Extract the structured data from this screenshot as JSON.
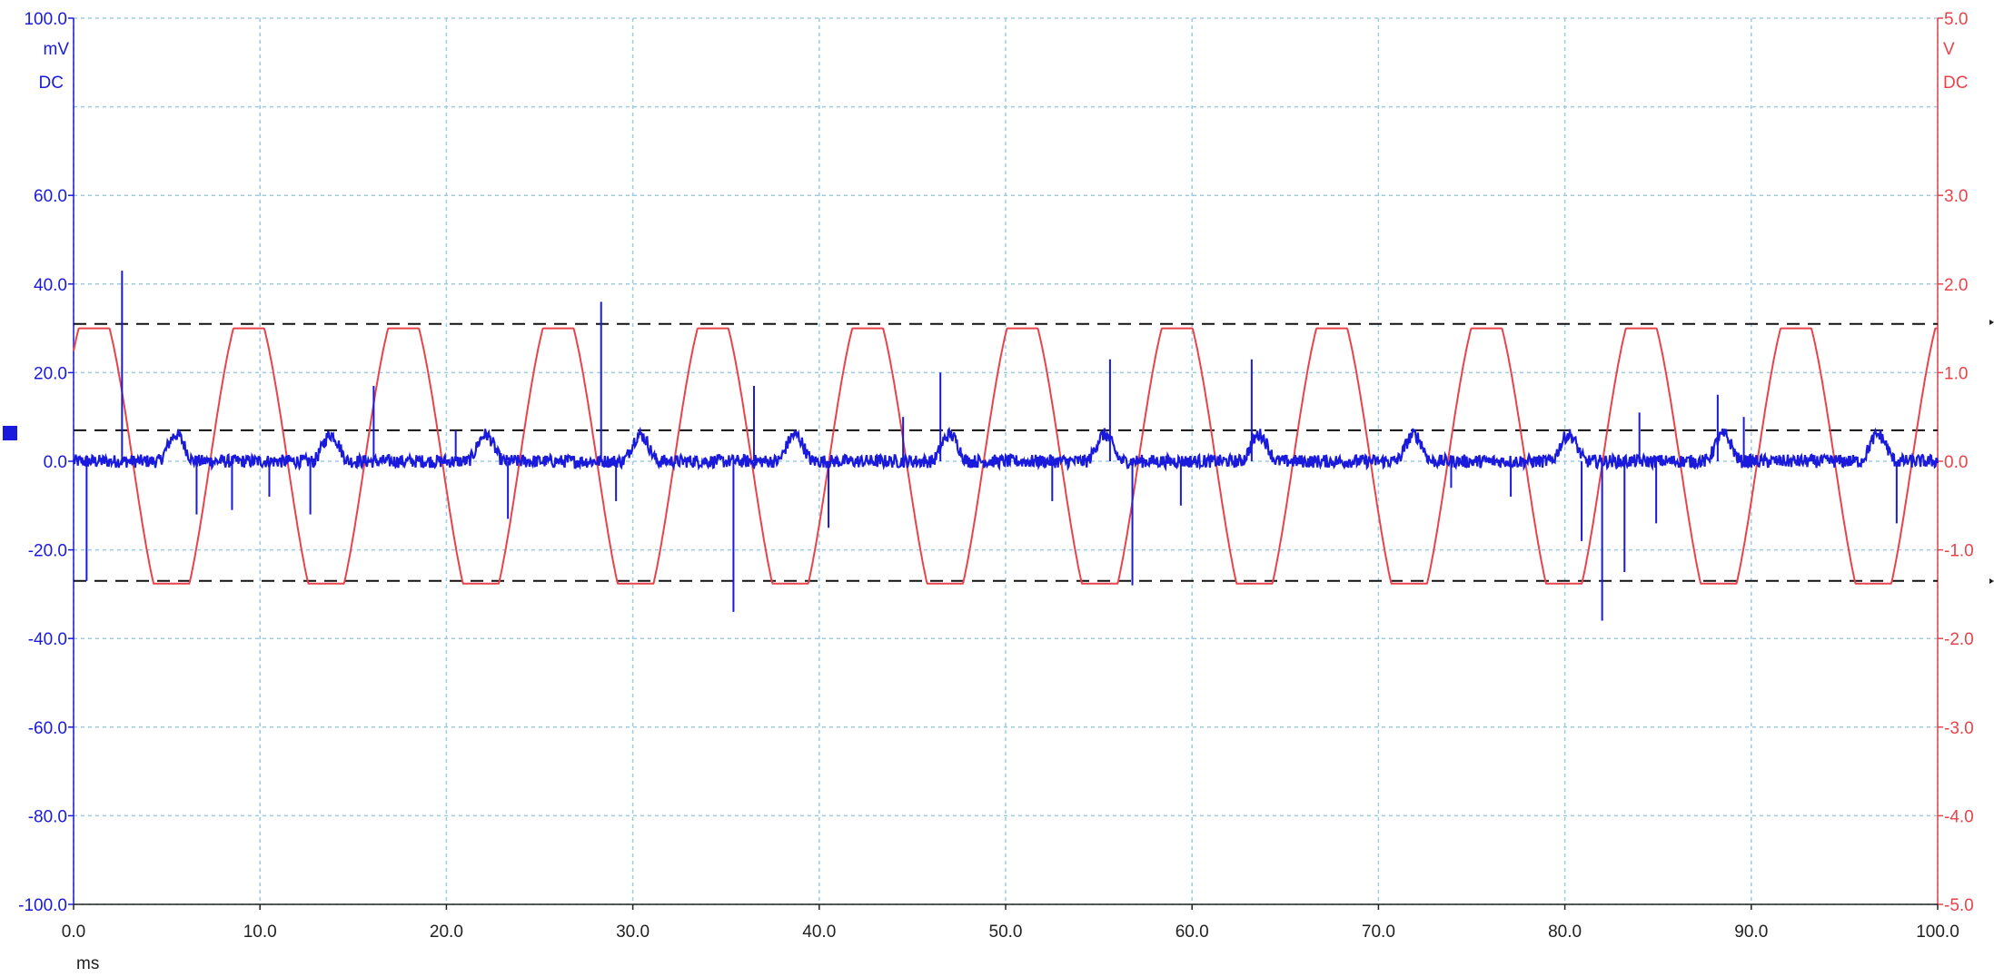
{
  "chart_data": {
    "type": "line",
    "title": "",
    "x_axis": {
      "range": [
        0,
        100
      ],
      "ticks": [
        "0.0",
        "10.0",
        "20.0",
        "30.0",
        "40.0",
        "50.0",
        "60.0",
        "70.0",
        "80.0",
        "90.0",
        "100.0"
      ],
      "unit_label": "ms"
    },
    "left_axis": {
      "range": [
        -100,
        100
      ],
      "ticks": [
        "100.0",
        "60.0",
        "40.0",
        "20.0",
        "0.0",
        "-20.0",
        "-40.0",
        "-60.0",
        "-80.0",
        "-100.0"
      ],
      "tick_values": [
        100,
        60,
        40,
        20,
        0,
        -20,
        -40,
        -60,
        -80,
        -100
      ],
      "unit": "mV",
      "coupling": "DC",
      "color": "#1a1adc"
    },
    "right_axis": {
      "range": [
        -5,
        5
      ],
      "ticks": [
        "5.0",
        "3.0",
        "2.0",
        "1.0",
        "0.0",
        "-1.0",
        "-2.0",
        "-3.0",
        "-4.0",
        "-5.0"
      ],
      "tick_values": [
        5,
        3,
        2,
        1,
        0,
        -1,
        -2,
        -3,
        -4,
        -5
      ],
      "unit": "V",
      "coupling": "DC",
      "color": "#e8434a"
    },
    "grid": true,
    "grid_x_divisions": 10,
    "grid_y_divisions": 10,
    "reference_lines_mV": [
      31,
      7,
      -27
    ],
    "series": [
      {
        "axis": "right",
        "color": "#e8434a",
        "shape": "clipped-sine",
        "period_ms": 8.3,
        "first_peak_ms": 1.1,
        "amplitude_V": 1.85,
        "max_V": 1.5,
        "min_V": -1.38
      },
      {
        "axis": "left",
        "color": "#1a1adc",
        "baseline_mV": 0,
        "noise_mV": 1.5,
        "bump_centers_ms": [
          5.5,
          13.8,
          22.1,
          30.4,
          38.7,
          47.0,
          55.3,
          63.6,
          71.9,
          80.2,
          88.5,
          96.8
        ],
        "bump_height_mV": 6,
        "bump_half_width_ms": 1.0,
        "spikes": [
          {
            "x": 0.7,
            "y": -27
          },
          {
            "x": 2.6,
            "y": 43
          },
          {
            "x": 6.6,
            "y": -12
          },
          {
            "x": 8.5,
            "y": -11
          },
          {
            "x": 10.5,
            "y": -8
          },
          {
            "x": 12.7,
            "y": -12
          },
          {
            "x": 16.1,
            "y": 17
          },
          {
            "x": 20.5,
            "y": 7
          },
          {
            "x": 23.3,
            "y": -13
          },
          {
            "x": 28.3,
            "y": 36
          },
          {
            "x": 29.1,
            "y": -9
          },
          {
            "x": 35.4,
            "y": -34
          },
          {
            "x": 36.5,
            "y": 17
          },
          {
            "x": 40.5,
            "y": -15
          },
          {
            "x": 44.5,
            "y": 10
          },
          {
            "x": 46.5,
            "y": 20
          },
          {
            "x": 52.5,
            "y": -9
          },
          {
            "x": 55.6,
            "y": 23
          },
          {
            "x": 56.8,
            "y": -28
          },
          {
            "x": 59.4,
            "y": -10
          },
          {
            "x": 63.2,
            "y": 23
          },
          {
            "x": 73.9,
            "y": -6
          },
          {
            "x": 77.1,
            "y": -8
          },
          {
            "x": 80.9,
            "y": -18
          },
          {
            "x": 82.0,
            "y": -36
          },
          {
            "x": 83.2,
            "y": -25
          },
          {
            "x": 84.0,
            "y": 11
          },
          {
            "x": 84.9,
            "y": -14
          },
          {
            "x": 88.2,
            "y": 15
          },
          {
            "x": 89.6,
            "y": 10
          },
          {
            "x": 97.8,
            "y": -14
          }
        ]
      }
    ]
  }
}
